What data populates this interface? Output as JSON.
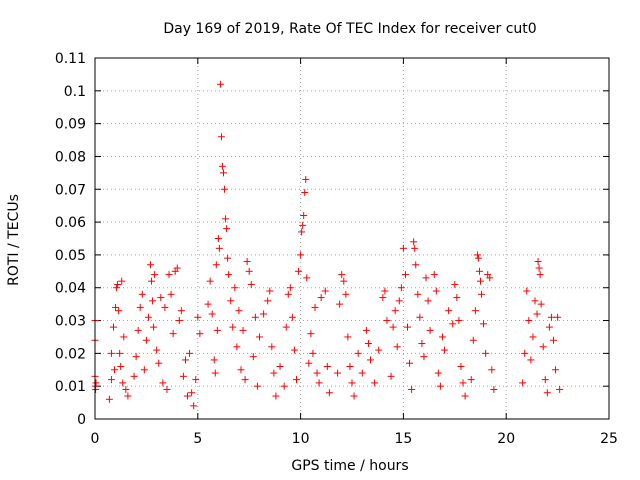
{
  "chart_data": {
    "type": "scatter",
    "title": "Day 169 of 2019, Rate Of TEC Index for receiver cut0",
    "xlabel": "GPS time / hours",
    "ylabel": "ROTI / TECUs",
    "xlim": [
      0,
      25
    ],
    "ylim": [
      0,
      0.11
    ],
    "xticks": [
      0,
      5,
      10,
      15,
      20,
      25
    ],
    "xtick_labels": [
      "0",
      "5",
      "10",
      "15",
      "20",
      "25"
    ],
    "yticks": [
      0,
      0.01,
      0.02,
      0.03,
      0.04,
      0.05,
      0.06,
      0.07,
      0.08,
      0.09,
      0.1,
      0.11
    ],
    "ytick_labels": [
      "0",
      "0.01",
      "0.02",
      "0.03",
      "0.04",
      "0.05",
      "0.06",
      "0.07",
      "0.08",
      "0.09",
      "0.1",
      "0.11"
    ],
    "grid": true,
    "marker": "+",
    "series": [
      {
        "name": "ROTI",
        "color": "#ff0000",
        "points": [
          [
            0.0,
            0.03
          ],
          [
            0.0,
            0.024
          ],
          [
            0.0,
            0.013
          ],
          [
            0.02,
            0.01
          ],
          [
            0.03,
            0.009
          ],
          [
            0.05,
            0.011
          ],
          [
            0.7,
            0.006
          ],
          [
            0.8,
            0.012
          ],
          [
            0.8,
            0.02
          ],
          [
            0.9,
            0.028
          ],
          [
            0.95,
            0.015
          ],
          [
            1.0,
            0.034
          ],
          [
            1.05,
            0.04
          ],
          [
            1.1,
            0.041
          ],
          [
            1.15,
            0.033
          ],
          [
            1.2,
            0.02
          ],
          [
            1.25,
            0.016
          ],
          [
            1.3,
            0.042
          ],
          [
            1.35,
            0.011
          ],
          [
            1.4,
            0.025
          ],
          [
            1.5,
            0.009
          ],
          [
            1.6,
            0.007
          ],
          [
            1.9,
            0.013
          ],
          [
            2.0,
            0.019
          ],
          [
            2.1,
            0.027
          ],
          [
            2.2,
            0.034
          ],
          [
            2.3,
            0.038
          ],
          [
            2.4,
            0.015
          ],
          [
            2.5,
            0.024
          ],
          [
            2.6,
            0.031
          ],
          [
            2.7,
            0.047
          ],
          [
            2.75,
            0.042
          ],
          [
            2.8,
            0.036
          ],
          [
            2.85,
            0.028
          ],
          [
            2.9,
            0.044
          ],
          [
            3.0,
            0.021
          ],
          [
            3.1,
            0.017
          ],
          [
            3.2,
            0.037
          ],
          [
            3.3,
            0.011
          ],
          [
            3.4,
            0.034
          ],
          [
            3.5,
            0.009
          ],
          [
            3.6,
            0.044
          ],
          [
            3.7,
            0.038
          ],
          [
            3.8,
            0.026
          ],
          [
            3.9,
            0.045
          ],
          [
            4.0,
            0.046
          ],
          [
            4.1,
            0.03
          ],
          [
            4.2,
            0.033
          ],
          [
            4.3,
            0.013
          ],
          [
            4.4,
            0.018
          ],
          [
            4.5,
            0.007
          ],
          [
            4.6,
            0.02
          ],
          [
            4.7,
            0.008
          ],
          [
            4.8,
            0.004
          ],
          [
            4.9,
            0.012
          ],
          [
            5.0,
            0.031
          ],
          [
            5.1,
            0.026
          ],
          [
            5.5,
            0.035
          ],
          [
            5.6,
            0.042
          ],
          [
            5.7,
            0.032
          ],
          [
            5.8,
            0.018
          ],
          [
            5.85,
            0.014
          ],
          [
            5.9,
            0.047
          ],
          [
            5.95,
            0.027
          ],
          [
            6.0,
            0.055
          ],
          [
            6.05,
            0.052
          ],
          [
            6.1,
            0.102
          ],
          [
            6.15,
            0.086
          ],
          [
            6.2,
            0.077
          ],
          [
            6.25,
            0.075
          ],
          [
            6.3,
            0.07
          ],
          [
            6.35,
            0.061
          ],
          [
            6.4,
            0.058
          ],
          [
            6.45,
            0.049
          ],
          [
            6.5,
            0.044
          ],
          [
            6.6,
            0.036
          ],
          [
            6.7,
            0.028
          ],
          [
            6.8,
            0.04
          ],
          [
            6.9,
            0.022
          ],
          [
            7.0,
            0.033
          ],
          [
            7.1,
            0.015
          ],
          [
            7.2,
            0.027
          ],
          [
            7.3,
            0.012
          ],
          [
            7.4,
            0.048
          ],
          [
            7.5,
            0.045
          ],
          [
            7.6,
            0.041
          ],
          [
            7.7,
            0.019
          ],
          [
            7.8,
            0.031
          ],
          [
            7.9,
            0.01
          ],
          [
            8.0,
            0.025
          ],
          [
            8.2,
            0.032
          ],
          [
            8.4,
            0.036
          ],
          [
            8.5,
            0.039
          ],
          [
            8.6,
            0.022
          ],
          [
            8.7,
            0.014
          ],
          [
            8.8,
            0.007
          ],
          [
            9.0,
            0.016
          ],
          [
            9.2,
            0.01
          ],
          [
            9.3,
            0.028
          ],
          [
            9.4,
            0.038
          ],
          [
            9.5,
            0.04
          ],
          [
            9.6,
            0.031
          ],
          [
            9.7,
            0.021
          ],
          [
            9.8,
            0.012
          ],
          [
            9.9,
            0.045
          ],
          [
            10.0,
            0.05
          ],
          [
            10.05,
            0.057
          ],
          [
            10.1,
            0.059
          ],
          [
            10.15,
            0.062
          ],
          [
            10.2,
            0.069
          ],
          [
            10.25,
            0.073
          ],
          [
            10.3,
            0.043
          ],
          [
            10.4,
            0.017
          ],
          [
            10.5,
            0.026
          ],
          [
            10.6,
            0.02
          ],
          [
            10.7,
            0.034
          ],
          [
            10.8,
            0.014
          ],
          [
            10.9,
            0.011
          ],
          [
            11.0,
            0.037
          ],
          [
            11.2,
            0.039
          ],
          [
            11.3,
            0.016
          ],
          [
            11.4,
            0.008
          ],
          [
            11.8,
            0.014
          ],
          [
            11.9,
            0.035
          ],
          [
            12.0,
            0.044
          ],
          [
            12.1,
            0.042
          ],
          [
            12.2,
            0.038
          ],
          [
            12.3,
            0.025
          ],
          [
            12.4,
            0.016
          ],
          [
            12.5,
            0.011
          ],
          [
            12.6,
            0.007
          ],
          [
            12.8,
            0.02
          ],
          [
            13.0,
            0.014
          ],
          [
            13.2,
            0.027
          ],
          [
            13.3,
            0.023
          ],
          [
            13.4,
            0.018
          ],
          [
            13.6,
            0.011
          ],
          [
            13.8,
            0.021
          ],
          [
            14.0,
            0.037
          ],
          [
            14.1,
            0.039
          ],
          [
            14.2,
            0.03
          ],
          [
            14.4,
            0.013
          ],
          [
            14.5,
            0.028
          ],
          [
            14.6,
            0.033
          ],
          [
            14.7,
            0.022
          ],
          [
            14.8,
            0.036
          ],
          [
            14.9,
            0.04
          ],
          [
            15.0,
            0.052
          ],
          [
            15.1,
            0.044
          ],
          [
            15.2,
            0.028
          ],
          [
            15.3,
            0.017
          ],
          [
            15.4,
            0.009
          ],
          [
            15.5,
            0.054
          ],
          [
            15.55,
            0.052
          ],
          [
            15.6,
            0.047
          ],
          [
            15.7,
            0.038
          ],
          [
            15.8,
            0.031
          ],
          [
            15.9,
            0.023
          ],
          [
            16.0,
            0.019
          ],
          [
            16.1,
            0.043
          ],
          [
            16.2,
            0.036
          ],
          [
            16.3,
            0.027
          ],
          [
            16.5,
            0.044
          ],
          [
            16.6,
            0.039
          ],
          [
            16.7,
            0.014
          ],
          [
            16.8,
            0.01
          ],
          [
            16.9,
            0.025
          ],
          [
            17.0,
            0.021
          ],
          [
            17.2,
            0.033
          ],
          [
            17.4,
            0.029
          ],
          [
            17.5,
            0.041
          ],
          [
            17.6,
            0.037
          ],
          [
            17.7,
            0.03
          ],
          [
            17.8,
            0.016
          ],
          [
            17.9,
            0.011
          ],
          [
            18.0,
            0.007
          ],
          [
            18.3,
            0.012
          ],
          [
            18.4,
            0.024
          ],
          [
            18.5,
            0.033
          ],
          [
            18.6,
            0.05
          ],
          [
            18.65,
            0.049
          ],
          [
            18.7,
            0.045
          ],
          [
            18.75,
            0.042
          ],
          [
            18.8,
            0.038
          ],
          [
            18.9,
            0.029
          ],
          [
            19.0,
            0.02
          ],
          [
            19.1,
            0.044
          ],
          [
            19.2,
            0.043
          ],
          [
            19.3,
            0.015
          ],
          [
            19.4,
            0.009
          ],
          [
            20.8,
            0.011
          ],
          [
            20.9,
            0.02
          ],
          [
            21.0,
            0.039
          ],
          [
            21.1,
            0.03
          ],
          [
            21.2,
            0.018
          ],
          [
            21.3,
            0.025
          ],
          [
            21.4,
            0.036
          ],
          [
            21.5,
            0.032
          ],
          [
            21.55,
            0.048
          ],
          [
            21.6,
            0.046
          ],
          [
            21.65,
            0.044
          ],
          [
            21.7,
            0.035
          ],
          [
            21.8,
            0.022
          ],
          [
            21.9,
            0.012
          ],
          [
            22.0,
            0.008
          ],
          [
            22.1,
            0.028
          ],
          [
            22.2,
            0.031
          ],
          [
            22.3,
            0.024
          ],
          [
            22.4,
            0.015
          ],
          [
            22.5,
            0.031
          ],
          [
            22.6,
            0.009
          ]
        ]
      }
    ]
  }
}
